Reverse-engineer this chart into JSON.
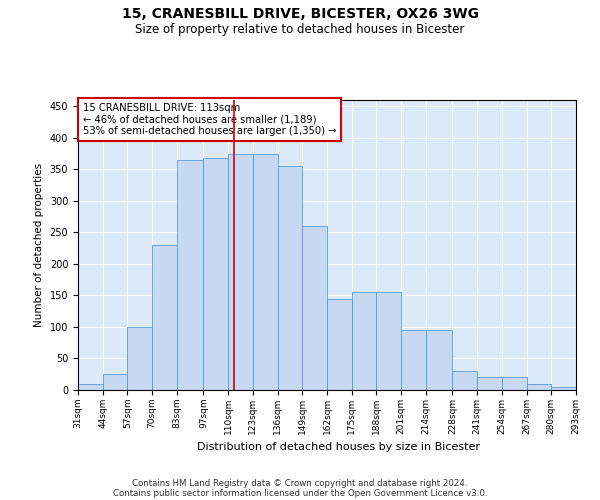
{
  "title1": "15, CRANESBILL DRIVE, BICESTER, OX26 3WG",
  "title2": "Size of property relative to detached houses in Bicester",
  "xlabel": "Distribution of detached houses by size in Bicester",
  "ylabel": "Number of detached properties",
  "bar_color": "#c6d9f1",
  "bar_edge_color": "#5b9bd5",
  "background_color": "#dce9f8",
  "vline_x": 113,
  "vline_color": "#cc0000",
  "annotation_text": "15 CRANESBILL DRIVE: 113sqm\n← 46% of detached houses are smaller (1,189)\n53% of semi-detached houses are larger (1,350) →",
  "annotation_box_color": "#ffffff",
  "annotation_box_edge": "#cc0000",
  "bins": [
    31,
    44,
    57,
    70,
    83,
    97,
    110,
    123,
    136,
    149,
    162,
    175,
    188,
    201,
    214,
    228,
    241,
    254,
    267,
    280,
    293
  ],
  "counts": [
    10,
    26,
    100,
    230,
    365,
    368,
    375,
    375,
    355,
    260,
    145,
    155,
    155,
    95,
    95,
    30,
    20,
    20,
    10,
    5
  ],
  "ylim": [
    0,
    460
  ],
  "yticks": [
    0,
    50,
    100,
    150,
    200,
    250,
    300,
    350,
    400,
    450
  ],
  "footnote1": "Contains HM Land Registry data © Crown copyright and database right 2024.",
  "footnote2": "Contains public sector information licensed under the Open Government Licence v3.0."
}
